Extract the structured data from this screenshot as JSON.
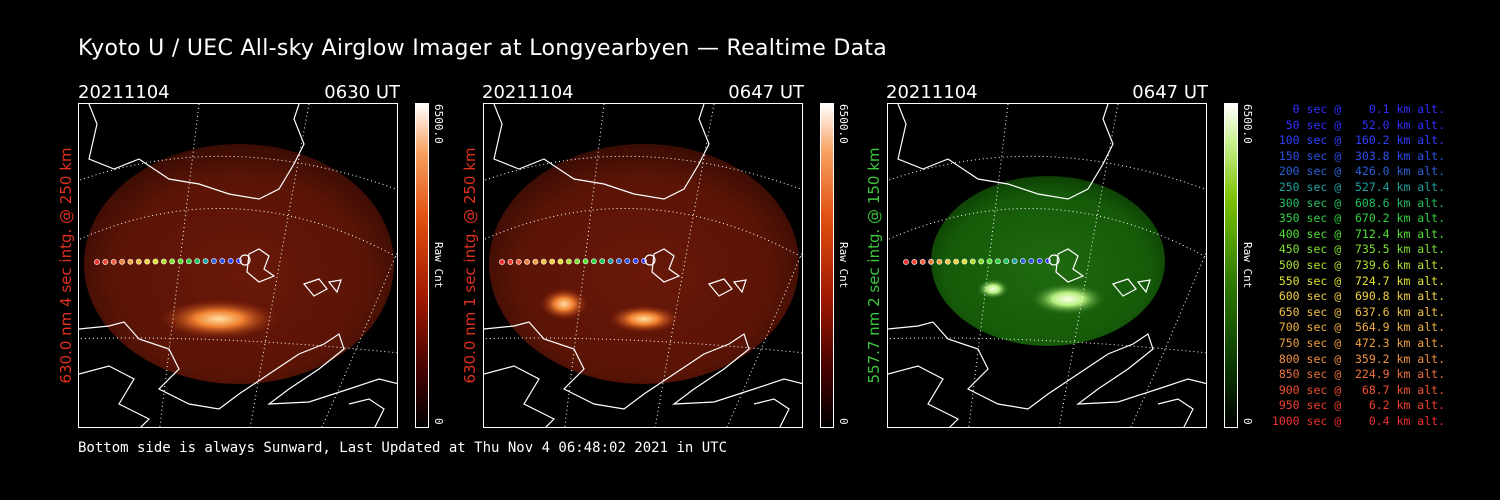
{
  "title": "Kyoto U / UEC All-sky Airglow Imager at Longyearbyen — Realtime Data",
  "panels": [
    {
      "date": "20211104",
      "time": "0630 UT",
      "ylabel": "630.0 nm 4 sec intg. @ 250 km",
      "label_color": "#e0301e",
      "cbar_max": "6500.0",
      "cbar_min": "0",
      "cbar_unit": "Raw Cnt",
      "scheme": "red"
    },
    {
      "date": "20211104",
      "time": "0647 UT",
      "ylabel": "630.0 nm 1 sec intg. @ 250 km",
      "label_color": "#e0301e",
      "cbar_max": "6500.0",
      "cbar_min": "0",
      "cbar_unit": "Raw Cnt",
      "scheme": "red"
    },
    {
      "date": "20211104",
      "time": "0647 UT",
      "ylabel": "557.7 nm 2 sec intg. @ 150 km",
      "label_color": "#3cc83c",
      "cbar_max": "6500.0",
      "cbar_min": "0",
      "cbar_unit": "Raw Cnt",
      "scheme": "green"
    }
  ],
  "footer": "Bottom side is always Sunward, Last Updated at Thu Nov  4 06:48:02 2021 in UTC",
  "legend": [
    {
      "text": "   0 sec @    0.1 km alt.",
      "color": "#3030ff"
    },
    {
      "text": "  50 sec @   52.0 km alt.",
      "color": "#3030ff"
    },
    {
      "text": " 100 sec @  160.2 km alt.",
      "color": "#3040ff"
    },
    {
      "text": " 150 sec @  303.8 km alt.",
      "color": "#2a50e8"
    },
    {
      "text": " 200 sec @  426.0 km alt.",
      "color": "#2a60d8"
    },
    {
      "text": " 250 sec @  527.4 km alt.",
      "color": "#20a0a0"
    },
    {
      "text": " 300 sec @  608.6 km alt.",
      "color": "#20c060"
    },
    {
      "text": " 350 sec @  670.2 km alt.",
      "color": "#30d040"
    },
    {
      "text": " 400 sec @  712.4 km alt.",
      "color": "#50e030"
    },
    {
      "text": " 450 sec @  735.5 km alt.",
      "color": "#80e030"
    },
    {
      "text": " 500 sec @  739.6 km alt.",
      "color": "#b0e030"
    },
    {
      "text": " 550 sec @  724.7 km alt.",
      "color": "#e0e030"
    },
    {
      "text": " 600 sec @  690.8 km alt.",
      "color": "#f0d040"
    },
    {
      "text": " 650 sec @  637.6 km alt.",
      "color": "#f0c040"
    },
    {
      "text": " 700 sec @  564.9 km alt.",
      "color": "#f0b040"
    },
    {
      "text": " 750 sec @  472.3 km alt.",
      "color": "#f0a040"
    },
    {
      "text": " 800 sec @  359.2 km alt.",
      "color": "#f09040"
    },
    {
      "text": " 850 sec @  224.9 km alt.",
      "color": "#f07040"
    },
    {
      "text": " 900 sec @   68.7 km alt.",
      "color": "#f05030"
    },
    {
      "text": " 950 sec @    6.2 km alt.",
      "color": "#f04030"
    },
    {
      "text": "1000 sec @    0.4 km alt.",
      "color": "#f03030"
    }
  ]
}
